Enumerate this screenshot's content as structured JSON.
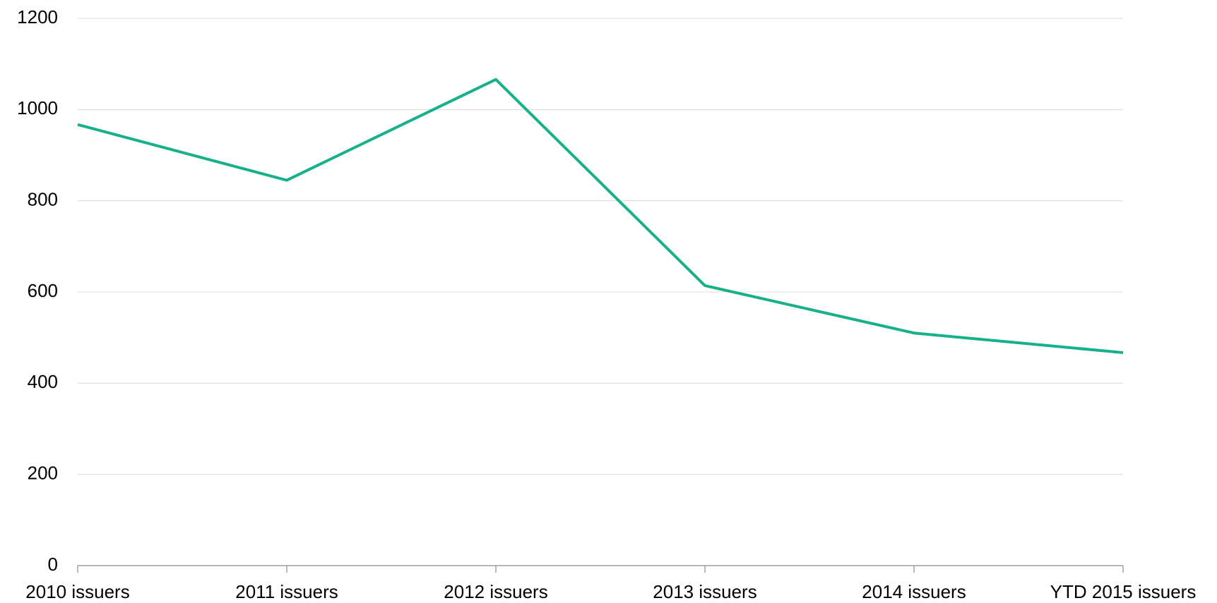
{
  "chart_data": {
    "type": "line",
    "categories": [
      "2010 issuers",
      "2011 issuers",
      "2012 issuers",
      "2013 issuers",
      "2014 issuers",
      "YTD 2015 issuers"
    ],
    "series": [
      {
        "name": "Issuers",
        "color": "#16b08b",
        "values": [
          967,
          845,
          1066,
          614,
          510,
          467
        ]
      }
    ],
    "ylim": [
      0,
      1200
    ],
    "yticks": [
      0,
      200,
      400,
      600,
      800,
      1000,
      1200
    ],
    "grid": true
  }
}
